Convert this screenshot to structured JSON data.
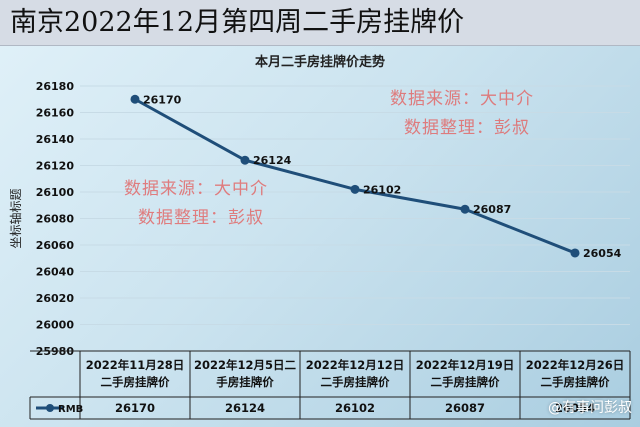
{
  "page_title": "南京2022年12月第四周二手房挂牌价",
  "watermarks": [
    {
      "line1": "数据来源：大中介",
      "line2": "数据整理：彭叔"
    },
    {
      "line1": "数据来源：大中介",
      "line2": "数据整理：彭叔"
    }
  ],
  "logo_text": "@有事问彭叔",
  "colors": {
    "series": "#1f4e79",
    "watermark": "#e26a6a"
  },
  "chart_data": {
    "type": "line",
    "title": "本月二手房挂牌价走势",
    "xlabel": "",
    "ylabel": "坐标轴标题",
    "categories": [
      "2022年11月28日\n二手房挂牌价",
      "2022年12月5日二\n手房挂牌价",
      "2022年12月12日\n二手房挂牌价",
      "2022年12月19日\n二手房挂牌价",
      "2022年12月26日\n二手房挂牌价"
    ],
    "series": [
      {
        "name": "RMB",
        "values": [
          26170,
          26124,
          26102,
          26087,
          26054
        ]
      }
    ],
    "ylim": [
      25980,
      26180
    ],
    "yticks": [
      25980,
      26000,
      26020,
      26040,
      26060,
      26080,
      26100,
      26120,
      26140,
      26160,
      26180
    ],
    "grid": true,
    "data_table": true
  }
}
